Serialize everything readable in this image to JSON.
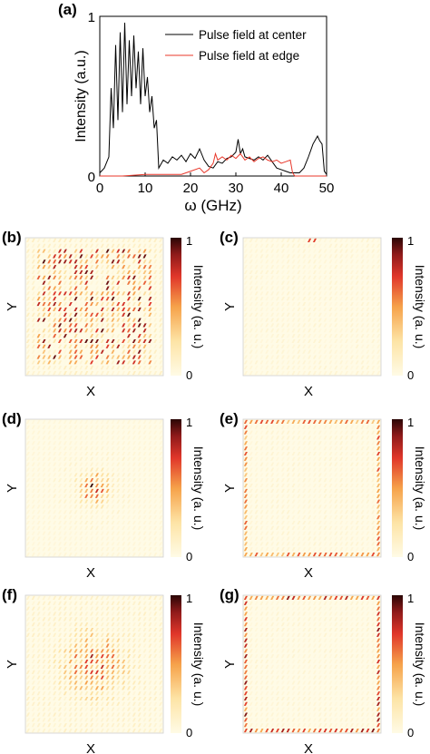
{
  "chart_data": [
    {
      "type": "line",
      "panel_label": "(a)",
      "xlabel": "ω (GHz)",
      "ylabel": "Intensity (a.u.)",
      "xlim": [
        0,
        50
      ],
      "ylim": [
        0,
        1
      ],
      "xticks": [
        "0",
        "10",
        "20",
        "30",
        "40",
        "50"
      ],
      "yticks": [
        "0",
        "1"
      ],
      "legend_position": "top-right",
      "series": [
        {
          "name": "Pulse field at center",
          "color": "#000000",
          "x": [
            0,
            1,
            2,
            2.5,
            3,
            3.5,
            4,
            4.5,
            5,
            5.5,
            6,
            6.5,
            7,
            7.5,
            8,
            8.5,
            9,
            9.5,
            10,
            10.5,
            11,
            11.5,
            12,
            12.5,
            13,
            14,
            15,
            16,
            17,
            18,
            19,
            20,
            21,
            22,
            23,
            24,
            25,
            26,
            27,
            28,
            29,
            30,
            30.5,
            31,
            31.5,
            32,
            33,
            34,
            35,
            36,
            37,
            38,
            39,
            40,
            41,
            42,
            43,
            44,
            45,
            46,
            47,
            48,
            48.5,
            49,
            49.5,
            50
          ],
          "y": [
            0.02,
            0.05,
            0.12,
            0.55,
            0.3,
            0.82,
            0.35,
            0.9,
            0.4,
            0.96,
            0.45,
            0.85,
            0.5,
            0.88,
            0.55,
            0.78,
            0.45,
            0.8,
            0.5,
            0.62,
            0.4,
            0.5,
            0.3,
            0.35,
            0.05,
            0.1,
            0.08,
            0.12,
            0.1,
            0.13,
            0.09,
            0.14,
            0.11,
            0.17,
            0.1,
            0.06,
            0.05,
            0.09,
            0.08,
            0.11,
            0.12,
            0.15,
            0.23,
            0.14,
            0.17,
            0.12,
            0.11,
            0.1,
            0.12,
            0.1,
            0.13,
            0.09,
            0.05,
            0.04,
            0.03,
            0.02,
            0.02,
            0.02,
            0.05,
            0.12,
            0.2,
            0.25,
            0.22,
            0.2,
            0.03,
            0.01
          ]
        },
        {
          "name": "Pulse field at edge",
          "color": "#e8372a",
          "x": [
            0,
            5,
            10,
            15,
            18,
            20,
            22,
            23,
            24,
            25,
            25.5,
            26,
            27,
            28,
            29,
            30,
            31,
            32,
            33,
            34,
            35,
            36,
            37,
            38,
            39,
            40,
            41,
            42,
            42.5,
            43,
            45,
            50
          ],
          "y": [
            0.0,
            0.0,
            0.01,
            0.01,
            0.01,
            0.03,
            0.05,
            0.02,
            0.04,
            0.08,
            0.14,
            0.1,
            0.12,
            0.1,
            0.13,
            0.11,
            0.14,
            0.1,
            0.12,
            0.09,
            0.11,
            0.12,
            0.1,
            0.09,
            0.1,
            0.08,
            0.09,
            0.1,
            0.02,
            0.0,
            0.0,
            0.0
          ]
        }
      ]
    },
    {
      "type": "heatmap",
      "panel_label": "(b)",
      "xlabel": "X",
      "ylabel": "Y",
      "colorbar_label": "Intensity (a. u.)",
      "colorbar_ticks": [
        "0",
        "1"
      ],
      "pattern": "bulk-spread",
      "intensity_range": [
        0,
        1
      ]
    },
    {
      "type": "heatmap",
      "panel_label": "(c)",
      "xlabel": "X",
      "ylabel": "Y",
      "colorbar_label": "Intensity (a. u.)",
      "colorbar_ticks": [
        "0",
        "1"
      ],
      "pattern": "edge-point-top",
      "intensity_range": [
        0,
        1
      ]
    },
    {
      "type": "heatmap",
      "panel_label": "(d)",
      "xlabel": "X",
      "ylabel": "Y",
      "colorbar_label": "Intensity (a. u.)",
      "colorbar_ticks": [
        "0",
        "1"
      ],
      "pattern": "center-localized",
      "intensity_range": [
        0,
        1
      ]
    },
    {
      "type": "heatmap",
      "panel_label": "(e)",
      "xlabel": "X",
      "ylabel": "Y",
      "colorbar_label": "Intensity (a. u.)",
      "colorbar_ticks": [
        "0",
        "1"
      ],
      "pattern": "edge-ring",
      "intensity_range": [
        0,
        1
      ]
    },
    {
      "type": "heatmap",
      "panel_label": "(f)",
      "xlabel": "X",
      "ylabel": "Y",
      "colorbar_label": "Intensity (a. u.)",
      "colorbar_ticks": [
        "0",
        "1"
      ],
      "pattern": "center-blob",
      "intensity_range": [
        0,
        1
      ]
    },
    {
      "type": "heatmap",
      "panel_label": "(g)",
      "xlabel": "X",
      "ylabel": "Y",
      "colorbar_label": "Intensity (a. u.)",
      "colorbar_ticks": [
        "0",
        "1"
      ],
      "pattern": "edge-ring-strong",
      "intensity_range": [
        0,
        1
      ]
    }
  ]
}
